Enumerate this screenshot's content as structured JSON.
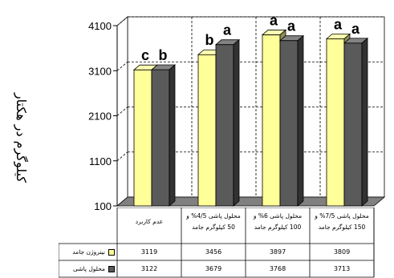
{
  "chart_data": {
    "type": "bar",
    "ylabel": "کیلوگرم در هکتار",
    "ylim": [
      100,
      4100
    ],
    "yticks": [
      100,
      1100,
      2100,
      3100,
      4100
    ],
    "categories": [
      "عدم کاربرد",
      "محلول پاشی 4/5% و 50 کیلوگرم جامد",
      "محلول پاشی 6% و 100 کیلوگرم جامد",
      "محلول پاشی 7/5% و 150 کیلوگرم جامد"
    ],
    "category_lines": [
      [
        "عدم کاربرد"
      ],
      [
        "محلول پاشی 4/5% و",
        "50 کیلوگرم جامد"
      ],
      [
        "محلول پاشی 6% و",
        "100 کیلوگرم جامد"
      ],
      [
        "محلول پاشی 7/5% و",
        "150 کیلوگرم جامد"
      ]
    ],
    "series": [
      {
        "name": "نیتروژن جامد",
        "color": "#ffff99",
        "values": [
          3119,
          3456,
          3897,
          3809
        ],
        "letters": [
          "c",
          "b",
          "a",
          "a"
        ]
      },
      {
        "name": "محلول پاشی",
        "color": "#5a5a5a",
        "values": [
          3122,
          3679,
          3768,
          3713
        ],
        "letters": [
          "b",
          "a",
          "a",
          "a"
        ]
      }
    ],
    "grid": true,
    "legend": "data-table"
  }
}
